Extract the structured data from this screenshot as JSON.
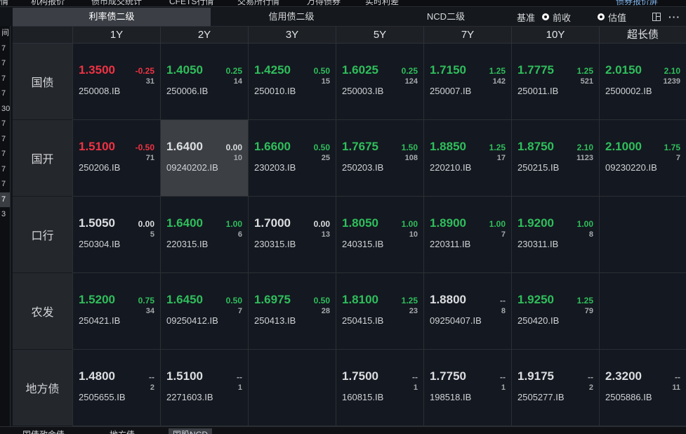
{
  "top_menu": [
    "情",
    "机构报价",
    "债市成交统计",
    "CFETS行情",
    "交易所行情",
    "万得债券",
    "实时利差"
  ],
  "top_right": "债券报价屏",
  "left_strip": [
    "间",
    "7",
    "7",
    "7",
    "7",
    "30",
    "7",
    "7",
    "7",
    "7",
    "7",
    "7",
    "3"
  ],
  "tabs": [
    {
      "label": "利率债二级",
      "active": true
    },
    {
      "label": "信用债二级",
      "active": false
    },
    {
      "label": "NCD二级",
      "active": false
    }
  ],
  "options": {
    "basis_label": "基准",
    "radio1": {
      "label": "前收",
      "checked": true
    },
    "radio2": {
      "label": "估值",
      "checked": false
    }
  },
  "icons": {
    "layout": "layout-icon",
    "more": "more-icon"
  },
  "columns": [
    "1Y",
    "2Y",
    "3Y",
    "5Y",
    "7Y",
    "10Y",
    "超长债"
  ],
  "rows": [
    {
      "label": "国债",
      "cells": [
        {
          "yield": "1.3500",
          "change": "-0.25",
          "count": "31",
          "code": "250008.IB",
          "color": "red"
        },
        {
          "yield": "1.4050",
          "change": "0.25",
          "count": "14",
          "code": "250006.IB",
          "color": "green"
        },
        {
          "yield": "1.4250",
          "change": "0.50",
          "count": "15",
          "code": "250010.IB",
          "color": "green"
        },
        {
          "yield": "1.6025",
          "change": "0.25",
          "count": "124",
          "code": "250003.IB",
          "color": "green"
        },
        {
          "yield": "1.7150",
          "change": "1.25",
          "count": "142",
          "code": "250007.IB",
          "color": "green"
        },
        {
          "yield": "1.7775",
          "change": "1.25",
          "count": "521",
          "code": "250011.IB",
          "color": "green"
        },
        {
          "yield": "2.0150",
          "change": "2.10",
          "count": "1239",
          "code": "2500002.IB",
          "color": "green"
        }
      ]
    },
    {
      "label": "国开",
      "cells": [
        {
          "yield": "1.5100",
          "change": "-0.50",
          "count": "71",
          "code": "250206.IB",
          "color": "red"
        },
        {
          "yield": "1.6400",
          "change": "0.00",
          "count": "10",
          "code": "09240202.IB",
          "color": "white",
          "highlight": true
        },
        {
          "yield": "1.6600",
          "change": "0.50",
          "count": "25",
          "code": "230203.IB",
          "color": "green"
        },
        {
          "yield": "1.7675",
          "change": "1.50",
          "count": "108",
          "code": "250203.IB",
          "color": "green"
        },
        {
          "yield": "1.8850",
          "change": "1.25",
          "count": "17",
          "code": "220210.IB",
          "color": "green"
        },
        {
          "yield": "1.8750",
          "change": "2.10",
          "count": "1123",
          "code": "250215.IB",
          "color": "green"
        },
        {
          "yield": "2.1000",
          "change": "1.75",
          "count": "7",
          "code": "09230220.IB",
          "color": "green"
        }
      ]
    },
    {
      "label": "口行",
      "cells": [
        {
          "yield": "1.5050",
          "change": "0.00",
          "count": "5",
          "code": "250304.IB",
          "color": "white"
        },
        {
          "yield": "1.6400",
          "change": "1.00",
          "count": "6",
          "code": "220315.IB",
          "color": "green"
        },
        {
          "yield": "1.7000",
          "change": "0.00",
          "count": "13",
          "code": "230315.IB",
          "color": "white"
        },
        {
          "yield": "1.8050",
          "change": "1.00",
          "count": "10",
          "code": "240315.IB",
          "color": "green"
        },
        {
          "yield": "1.8900",
          "change": "1.00",
          "count": "7",
          "code": "220311.IB",
          "color": "green"
        },
        {
          "yield": "1.9200",
          "change": "1.00",
          "count": "8",
          "code": "230311.IB",
          "color": "green"
        },
        null
      ]
    },
    {
      "label": "农发",
      "cells": [
        {
          "yield": "1.5200",
          "change": "0.75",
          "count": "34",
          "code": "250421.IB",
          "color": "green"
        },
        {
          "yield": "1.6450",
          "change": "0.50",
          "count": "7",
          "code": "09250412.IB",
          "color": "green"
        },
        {
          "yield": "1.6975",
          "change": "0.50",
          "count": "28",
          "code": "250413.IB",
          "color": "green"
        },
        {
          "yield": "1.8100",
          "change": "1.25",
          "count": "23",
          "code": "250415.IB",
          "color": "green"
        },
        {
          "yield": "1.8800",
          "change": "--",
          "count": "8",
          "code": "09250407.IB",
          "color": "white"
        },
        {
          "yield": "1.9250",
          "change": "1.25",
          "count": "79",
          "code": "250420.IB",
          "color": "green"
        },
        null
      ]
    },
    {
      "label": "地方债",
      "cells": [
        {
          "yield": "1.4800",
          "change": "--",
          "count": "2",
          "code": "2505655.IB",
          "color": "white"
        },
        {
          "yield": "1.5100",
          "change": "--",
          "count": "1",
          "code": "2271603.IB",
          "color": "white"
        },
        null,
        {
          "yield": "1.7500",
          "change": "--",
          "count": "1",
          "code": "160815.IB",
          "color": "white"
        },
        {
          "yield": "1.7750",
          "change": "--",
          "count": "1",
          "code": "198518.IB",
          "color": "white"
        },
        {
          "yield": "1.9175",
          "change": "--",
          "count": "2",
          "code": "2505277.IB",
          "color": "white"
        },
        {
          "yield": "2.3200",
          "change": "--",
          "count": "11",
          "code": "2505886.IB",
          "color": "white"
        }
      ]
    }
  ],
  "bottom_tabs": [
    "国债政金债",
    "地方债",
    "国股NCD"
  ],
  "colors": {
    "up": "#2fbe5c",
    "down": "#ee3344",
    "flat": "#dcdee1",
    "background": "#111419"
  }
}
